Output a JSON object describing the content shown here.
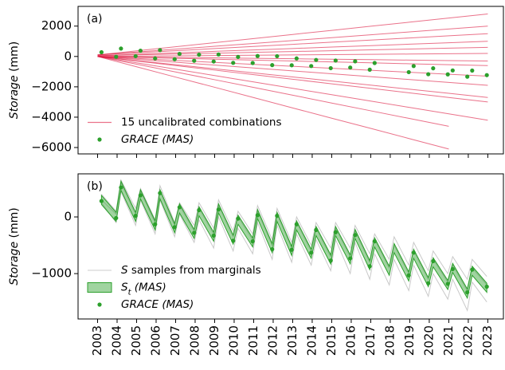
{
  "chart_data": [
    {
      "type": "line",
      "panel_label": "(a)",
      "ylabel": "Storage (mm)",
      "xlim": [
        2002.0,
        2023.8
      ],
      "xticks": [
        2003,
        2004,
        2005,
        2006,
        2007,
        2008,
        2009,
        2010,
        2011,
        2012,
        2013,
        2014,
        2015,
        2016,
        2017,
        2018,
        2019,
        2020,
        2021,
        2022,
        2023
      ],
      "show_xtick_labels": false,
      "ylim": [
        -6420,
        3300
      ],
      "yticks": [
        2000,
        0,
        {
          "value": -2000,
          "label": "−2000"
        },
        {
          "value": -4000,
          "label": "−4000"
        },
        {
          "value": -6000,
          "label": "−6000"
        }
      ],
      "legend": "lower left",
      "series": [
        {
          "name": "15 uncalibrated combinations",
          "kind": "lines",
          "color": "#dc143c",
          "x": [
            2003,
            2005,
            2007,
            2009,
            2011,
            2013,
            2015,
            2017,
            2019,
            2021,
            2023
          ],
          "lines": [
            [
              100,
              370,
              640,
              910,
              1180,
              1450,
              1720,
              1990,
              2260,
              2530,
              2800
            ],
            [
              100,
              290,
              480,
              670,
              860,
              1050,
              1240,
              1430,
              1620,
              1810,
              2000
            ],
            [
              100,
              240,
              380,
              520,
              660,
              800,
              940,
              1080,
              1220,
              1360,
              1500
            ],
            [
              50,
              145,
              240,
              335,
              430,
              525,
              620,
              715,
              810,
              905,
              1000
            ],
            [
              50,
              105,
              160,
              215,
              270,
              325,
              380,
              435,
              490,
              545,
              600
            ],
            [
              0,
              20,
              40,
              60,
              80,
              100,
              120,
              140,
              160,
              180,
              200
            ],
            [
              0,
              -30,
              -60,
              -90,
              -120,
              -150,
              -180,
              -210,
              -240,
              -270,
              -300
            ],
            [
              0,
              -60,
              -120,
              -180,
              -240,
              -300,
              -360,
              -420,
              -480,
              -540,
              -600
            ],
            [
              0,
              -130,
              -260,
              -390,
              -520,
              -650,
              -780,
              -910,
              -1040,
              -1170,
              -1300
            ],
            [
              0,
              -190,
              -380,
              -570,
              -760,
              -950,
              -1140,
              -1330,
              -1520,
              -1710,
              -1900
            ],
            [
              0,
              -270,
              -540,
              -810,
              -1080,
              -1350,
              -1620,
              -1890,
              -2160,
              -2430,
              -2700
            ],
            [
              0,
              -300,
              -600,
              -900,
              -1200,
              -1500,
              -1800,
              -2100,
              -2400,
              -2700,
              -3000
            ],
            [
              0,
              -420,
              -840,
              -1260,
              -1680,
              -2100,
              -2520,
              -2940,
              -3360,
              -3780,
              -4200
            ],
            [
              0,
              -510,
              -1020,
              -1530,
              -2040,
              -2550,
              -3070,
              -3580,
              -4090,
              -4600,
              null
            ],
            [
              0,
              -680,
              -1360,
              -2030,
              -2710,
              -3390,
              -4070,
              -4740,
              -5420,
              -6100,
              null
            ]
          ]
        },
        {
          "name": "GRACE (MAS)",
          "kind": "scatter",
          "color": "#2ca02c",
          "x": [
            2003.2,
            2003.95,
            2004.2,
            2004.95,
            2005.2,
            2005.95,
            2006.2,
            2006.95,
            2007.2,
            2007.95,
            2008.2,
            2008.95,
            2009.2,
            2009.95,
            2010.2,
            2010.95,
            2011.2,
            2011.95,
            2012.2,
            2012.95,
            2013.2,
            2013.95,
            2014.2,
            2014.95,
            2015.2,
            2015.95,
            2016.2,
            2016.95,
            2017.2,
            2017.95,
            2018.2,
            2018.95,
            2019.2,
            2019.95,
            2020.2,
            2020.95,
            2021.2,
            2021.95,
            2022.2,
            2022.95
          ],
          "values": [
            280,
            -20,
            520,
            20,
            380,
            -130,
            420,
            -180,
            170,
            -280,
            120,
            -330,
            130,
            -420,
            -30,
            -430,
            30,
            -570,
            20,
            -580,
            -130,
            -630,
            -230,
            -770,
            -270,
            -730,
            -320,
            -870,
            -430,
            null,
            null,
            -1030,
            -630,
            -1170,
            -780,
            -1180,
            -920,
            -1330,
            -930,
            -1230
          ]
        }
      ]
    },
    {
      "type": "line",
      "panel_label": "(b)",
      "ylabel": "Storage (mm)",
      "xlim": [
        2002.0,
        2023.8
      ],
      "xticks": [
        2003,
        2004,
        2005,
        2006,
        2007,
        2008,
        2009,
        2010,
        2011,
        2012,
        2013,
        2014,
        2015,
        2016,
        2017,
        2018,
        2019,
        2020,
        2021,
        2022,
        2023
      ],
      "show_xtick_labels": true,
      "ylim": [
        -1800,
        760
      ],
      "yticks": [
        0,
        {
          "value": -1000,
          "label": "−1000"
        }
      ],
      "legend": "lower left",
      "series": [
        {
          "name": "S samples from marginals",
          "kind": "lines",
          "color": "#bbbbbb",
          "x": [
            2003.2,
            2003.95,
            2004.2,
            2004.95,
            2005.2,
            2005.95,
            2006.2,
            2006.95,
            2007.2,
            2007.95,
            2008.2,
            2008.95,
            2009.2,
            2009.95,
            2010.2,
            2010.95,
            2011.2,
            2011.95,
            2012.2,
            2012.95,
            2013.2,
            2013.95,
            2014.2,
            2014.95,
            2015.2,
            2015.95,
            2016.2,
            2016.95,
            2017.2,
            2017.95,
            2018.2,
            2018.95,
            2019.2,
            2019.95,
            2020.2,
            2020.95,
            2021.2,
            2021.95,
            2022.2,
            2022.95
          ],
          "lines": [
            [
              400,
              100,
              650,
              150,
              500,
              -50,
              550,
              -100,
              250,
              -150,
              250,
              -200,
              300,
              -250,
              100,
              -300,
              200,
              -400,
              150,
              -450,
              0,
              -500,
              -100,
              -550,
              -100,
              -550,
              -150,
              -650,
              -300,
              -750,
              -350,
              -850,
              -450,
              -950,
              -600,
              -1000,
              -700,
              -1100,
              -750,
              -1050
            ],
            [
              250,
              -100,
              450,
              -150,
              300,
              -300,
              300,
              -350,
              50,
              -450,
              -50,
              -550,
              0,
              -600,
              -200,
              -650,
              -100,
              -750,
              -150,
              -800,
              -300,
              -850,
              -400,
              -950,
              -400,
              -1000,
              -450,
              -1100,
              -650,
              -1200,
              -750,
              -1300,
              -850,
              -1400,
              -1000,
              -1450,
              -1100,
              -1650,
              -1150,
              -1500
            ],
            [
              300,
              50,
              600,
              50,
              450,
              -100,
              450,
              -150,
              200,
              -250,
              150,
              -300,
              200,
              -350,
              0,
              -400,
              100,
              -500,
              50,
              -550,
              -100,
              -600,
              -200,
              -700,
              -200,
              -700,
              -250,
              -800,
              -400,
              -900,
              -500,
              -1000,
              -600,
              -1100,
              -750,
              -1150,
              -850,
              -1300,
              -900,
              -1200
            ]
          ]
        },
        {
          "name": "St (MAS)",
          "kind": "band",
          "color": "#2ca02c",
          "x": [
            2003.2,
            2003.95,
            2004.2,
            2004.95,
            2005.2,
            2005.95,
            2006.2,
            2006.95,
            2007.2,
            2007.95,
            2008.2,
            2008.95,
            2009.2,
            2009.95,
            2010.2,
            2010.95,
            2011.2,
            2011.95,
            2012.2,
            2012.95,
            2013.2,
            2013.95,
            2014.2,
            2014.95,
            2015.2,
            2015.95,
            2016.2,
            2016.95,
            2017.2,
            2017.95,
            2018.2,
            2018.95,
            2019.2,
            2019.95,
            2020.2,
            2020.95,
            2021.2,
            2021.95,
            2022.2,
            2022.95
          ],
          "lower": [
            220,
            -80,
            470,
            -80,
            320,
            -230,
            320,
            -280,
            70,
            -380,
            20,
            -430,
            70,
            -480,
            -130,
            -530,
            -30,
            -630,
            -80,
            -680,
            -230,
            -730,
            -330,
            -830,
            -330,
            -830,
            -380,
            -930,
            -530,
            -1030,
            -630,
            -1130,
            -730,
            -1230,
            -880,
            -1280,
            -980,
            -1430,
            -1030,
            -1330
          ],
          "upper": [
            380,
            80,
            630,
            80,
            480,
            -70,
            480,
            -120,
            230,
            -220,
            180,
            -270,
            230,
            -320,
            30,
            -370,
            130,
            -470,
            80,
            -520,
            -70,
            -570,
            -170,
            -670,
            -170,
            -670,
            -220,
            -770,
            -370,
            -870,
            -470,
            -970,
            -570,
            -1070,
            -720,
            -1120,
            -820,
            -1270,
            -870,
            -1170
          ]
        },
        {
          "name": "GRACE (MAS)",
          "kind": "scatter",
          "color": "#2ca02c",
          "x": [
            2003.2,
            2003.95,
            2004.2,
            2004.95,
            2005.2,
            2005.95,
            2006.2,
            2006.95,
            2007.2,
            2007.95,
            2008.2,
            2008.95,
            2009.2,
            2009.95,
            2010.2,
            2010.95,
            2011.2,
            2011.95,
            2012.2,
            2012.95,
            2013.2,
            2013.95,
            2014.2,
            2014.95,
            2015.2,
            2015.95,
            2016.2,
            2016.95,
            2017.2,
            2017.95,
            2018.2,
            2018.95,
            2019.2,
            2019.95,
            2020.2,
            2020.95,
            2021.2,
            2021.95,
            2022.2,
            2022.95
          ],
          "values": [
            280,
            -20,
            520,
            20,
            380,
            -130,
            420,
            -180,
            170,
            -280,
            120,
            -330,
            130,
            -420,
            -30,
            -430,
            30,
            -570,
            20,
            -580,
            -130,
            -630,
            -230,
            -770,
            -270,
            -730,
            -320,
            -870,
            -430,
            null,
            null,
            -1030,
            -630,
            -1170,
            -780,
            -1180,
            -920,
            -1330,
            -930,
            -1230
          ]
        }
      ]
    }
  ]
}
